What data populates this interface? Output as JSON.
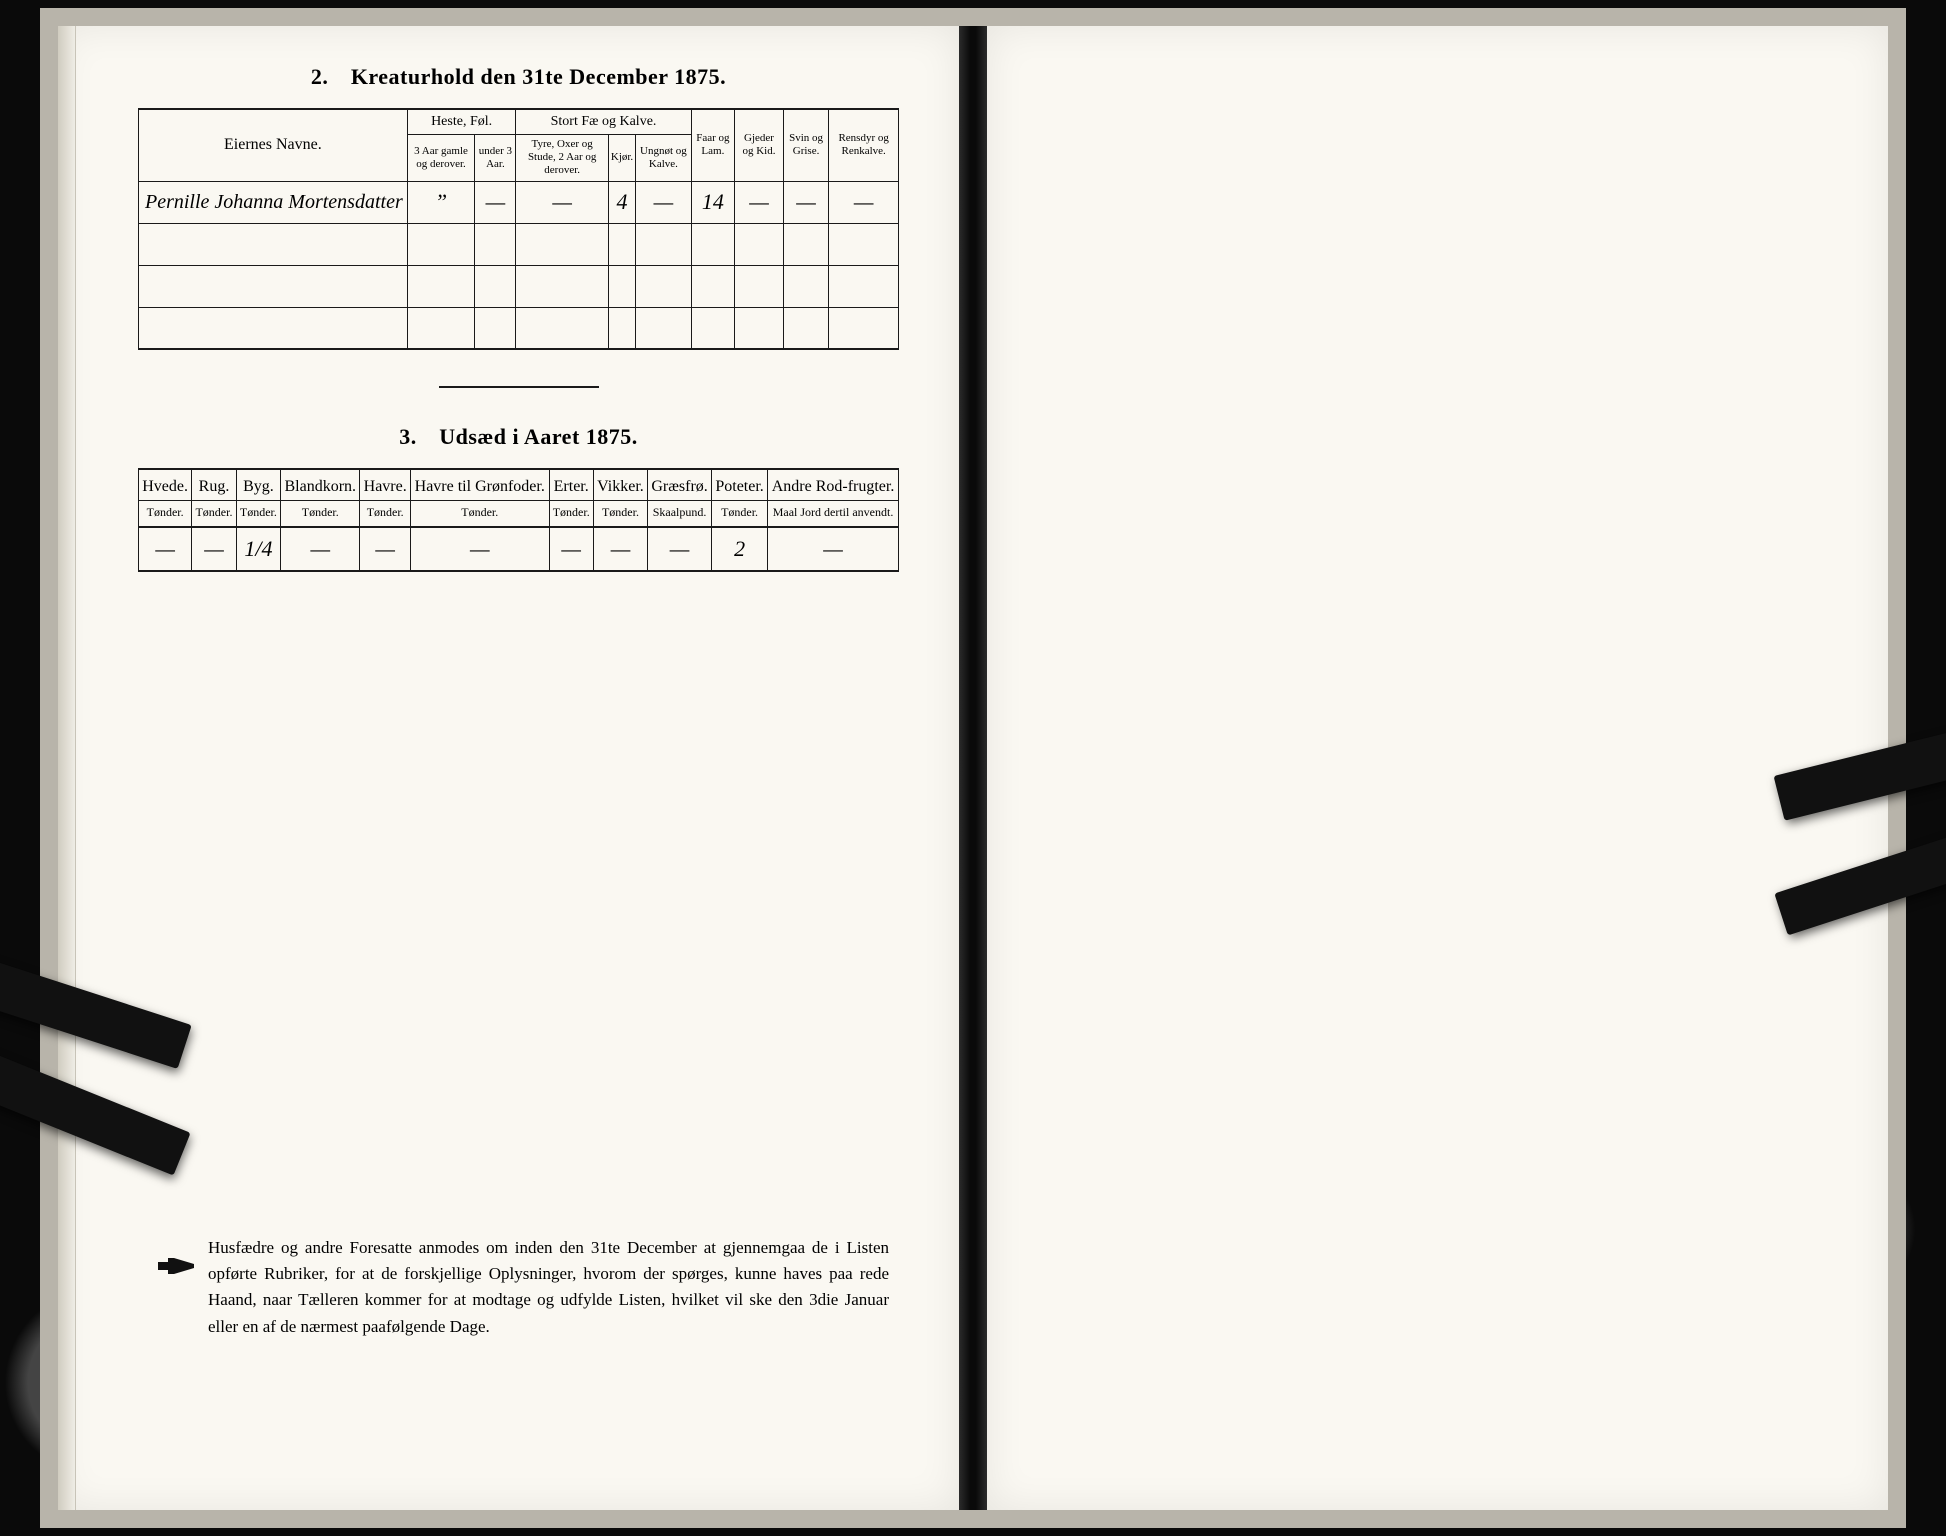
{
  "table1": {
    "title": "2. Kreaturhold den 31te December 1875.",
    "headers": {
      "name": "Eiernes Navne.",
      "horses_group": "Heste, Føl.",
      "cattle_group": "Stort Fæ og Kalve.",
      "h1": "3 Aar gamle og derover.",
      "h2": "under 3 Aar.",
      "c1": "Tyre, Oxer og Stude, 2 Aar og derover.",
      "c2": "Kjør.",
      "c3": "Ungnøt og Kalve.",
      "sheep": "Faar og Lam.",
      "goats": "Gjeder og Kid.",
      "pigs": "Svin og Grise.",
      "reindeer": "Rensdyr og Renkalve."
    },
    "row": {
      "name": "Pernille Johanna Mortensdatter",
      "h1": "”",
      "h2": "—",
      "c1": "—",
      "c2": "4",
      "c3": "—",
      "sheep": "14",
      "goats": "—",
      "pigs": "—",
      "reindeer": "—"
    }
  },
  "table2": {
    "title": "3. Udsæd i Aaret 1875.",
    "cols": [
      {
        "h": "Hvede.",
        "u": "Tønder."
      },
      {
        "h": "Rug.",
        "u": "Tønder."
      },
      {
        "h": "Byg.",
        "u": "Tønder."
      },
      {
        "h": "Blandkorn.",
        "u": "Tønder."
      },
      {
        "h": "Havre.",
        "u": "Tønder."
      },
      {
        "h": "Havre til Grønfoder.",
        "u": "Tønder."
      },
      {
        "h": "Erter.",
        "u": "Tønder."
      },
      {
        "h": "Vikker.",
        "u": "Tønder."
      },
      {
        "h": "Græsfrø.",
        "u": "Skaalpund."
      },
      {
        "h": "Poteter.",
        "u": "Tønder."
      },
      {
        "h": "Andre Rod-frugter.",
        "u": "Maal Jord dertil anvendt."
      }
    ],
    "values": [
      "—",
      "—",
      "1/4",
      "—",
      "—",
      "—",
      "—",
      "—",
      "—",
      "2",
      "—"
    ]
  },
  "footnote": "Husfædre og andre Foresatte anmodes om inden den 31te December at gjennemgaa de i Listen opførte Rubriker, for at de forskjellige Oplysninger, hvorom der spørges, kunne haves paa rede Haand, naar Tælleren kommer for at modtage og udfylde Listen, hvilket vil ske den 3die Januar eller en af de nærmest paafølgende Dage."
}
